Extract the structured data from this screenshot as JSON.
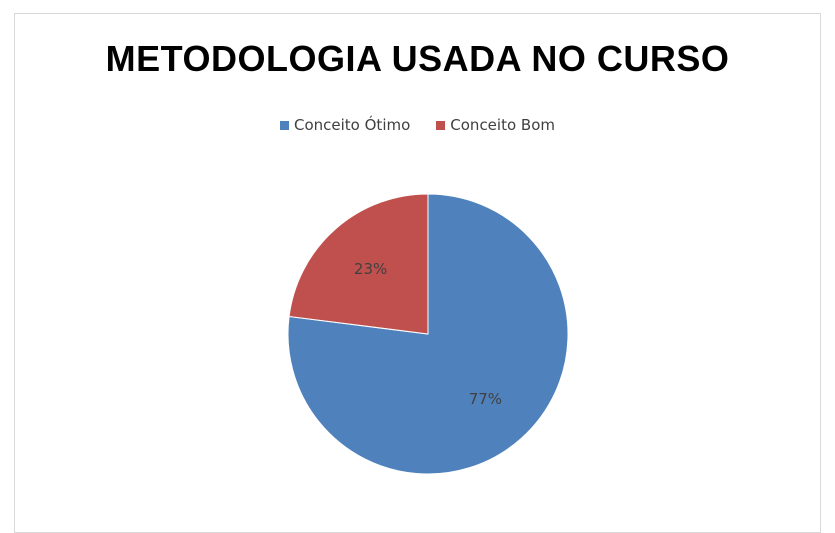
{
  "chart_data": {
    "type": "pie",
    "title": "METODOLOGIA USADA NO CURSO",
    "legend_position": "top",
    "slices": [
      {
        "name": "Conceito Ótimo",
        "value": 77,
        "label": "77%",
        "color": "#4f81bd"
      },
      {
        "name": "Conceito Bom",
        "value": 23,
        "label": "23%",
        "color": "#c0504d"
      }
    ]
  }
}
